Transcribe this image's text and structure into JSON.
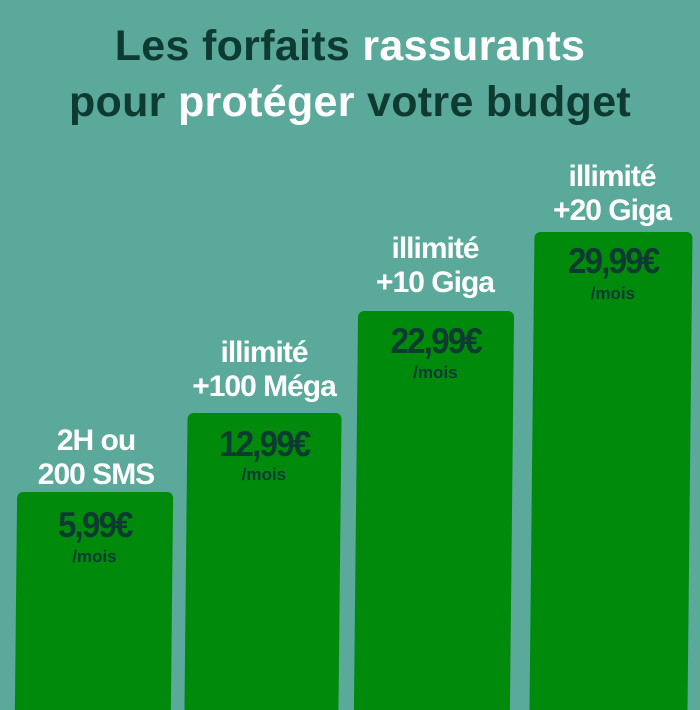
{
  "title": {
    "line1_a": "Les forfaits ",
    "line1_b": "rassurants",
    "line2_a": "pour ",
    "line2_b": "protéger",
    "line2_c": " votre budget"
  },
  "plans": [
    {
      "label_1": "2H ou",
      "label_2": "200 SMS",
      "price": "5,99€",
      "unit": "/mois"
    },
    {
      "label_1": "illimité",
      "label_2": "+100 Méga",
      "price": "12,99€",
      "unit": "/mois"
    },
    {
      "label_1": "illimité",
      "label_2": "+10 Giga",
      "price": "22,99€",
      "unit": "/mois"
    },
    {
      "label_1": "illimité",
      "label_2": "+20 Giga",
      "price": "29,99€",
      "unit": "/mois"
    }
  ],
  "colors": {
    "background": "#5aa99a",
    "bar": "#008a0c",
    "dark_text": "#0d3b31",
    "highlight_text": "#ffffff"
  }
}
